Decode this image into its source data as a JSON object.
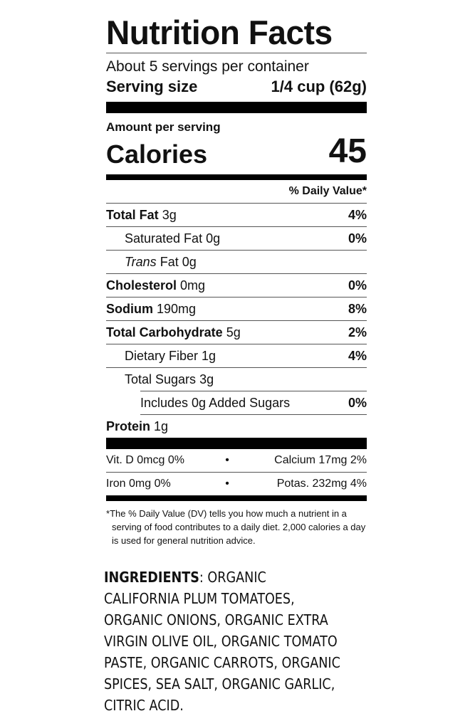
{
  "label": {
    "title": "Nutrition Facts",
    "servings_per_container": "About 5 servings per container",
    "serving_size_label": "Serving size",
    "serving_size_value": "1/4 cup (62g)",
    "amount_per_serving": "Amount per serving",
    "calories_label": "Calories",
    "calories_value": "45",
    "daily_value_header": "% Daily Value*",
    "nutrients": [
      {
        "name": "Total Fat",
        "amount": "3g",
        "dv": "4%"
      },
      {
        "name": "Saturated Fat",
        "amount": "0g",
        "dv": "0%"
      },
      {
        "name": "Trans",
        "name_suffix": "Fat",
        "amount": "0g",
        "dv": ""
      },
      {
        "name": "Cholesterol",
        "amount": "0mg",
        "dv": "0%"
      },
      {
        "name": "Sodium",
        "amount": "190mg",
        "dv": "8%"
      },
      {
        "name": "Total Carbohydrate",
        "amount": "5g",
        "dv": "2%"
      },
      {
        "name": "Dietary Fiber",
        "amount": "1g",
        "dv": "4%"
      },
      {
        "name": "Total Sugars",
        "amount": "3g",
        "dv": ""
      },
      {
        "name": "Includes 0g Added Sugars",
        "amount": "",
        "dv": "0%"
      },
      {
        "name": "Protein",
        "amount": "1g",
        "dv": ""
      }
    ],
    "vitamins": [
      {
        "left": "Vit. D 0mcg 0%",
        "sep": "•",
        "right": "Calcium 17mg 2%"
      },
      {
        "left": "Iron 0mg 0%",
        "sep": "•",
        "right": "Potas. 232mg 4%"
      }
    ],
    "footnote_marker": "*",
    "footnote": "The % Daily Value (DV) tells you how much a nutrient in a serving of food contributes to a daily diet. 2,000 calories a day is used for general nutrition advice."
  },
  "ingredients": {
    "heading": "INGREDIENTS",
    "text": ": ORGANIC CALIFORNIA PLUM TOMATOES, ORGANIC ONIONS, ORGANIC EXTRA VIRGIN OLIVE OIL, ORGANIC TOMATO PASTE, ORGANIC CARROTS, ORGANIC SPICES, SEA SALT, ORGANIC GARLIC, CITRIC ACID."
  }
}
